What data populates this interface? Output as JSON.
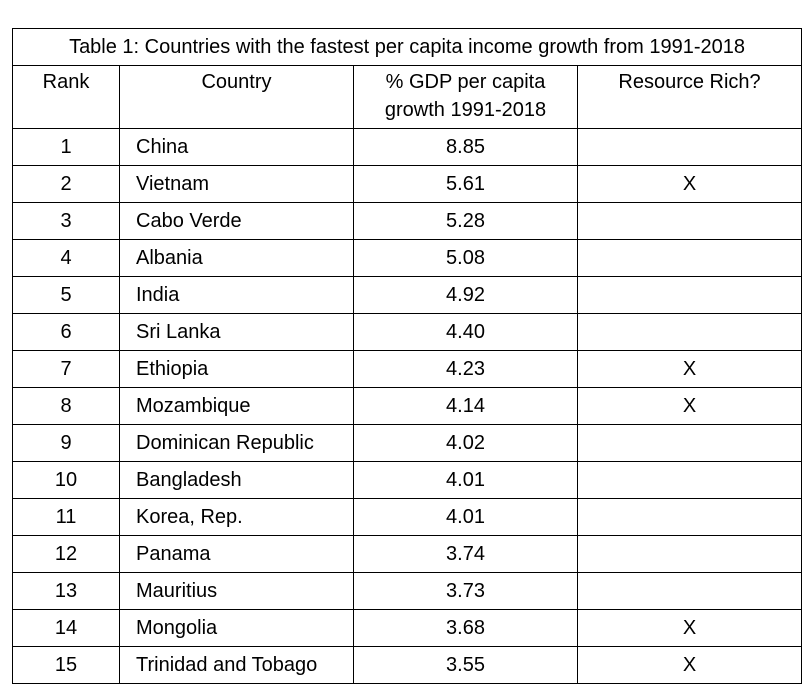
{
  "table": {
    "title": "Table 1: Countries with the fastest per capita income growth from 1991-2018",
    "headers": {
      "rank": "Rank",
      "country": "Country",
      "growth_line1": "% GDP per capita",
      "growth_line2": "growth 1991-2018",
      "resource_rich": "Resource Rich?"
    },
    "rows": [
      {
        "rank": "1",
        "country": "China",
        "growth": "8.85",
        "resource_rich": ""
      },
      {
        "rank": "2",
        "country": "Vietnam",
        "growth": "5.61",
        "resource_rich": "X"
      },
      {
        "rank": "3",
        "country": "Cabo Verde",
        "growth": "5.28",
        "resource_rich": ""
      },
      {
        "rank": "4",
        "country": "Albania",
        "growth": "5.08",
        "resource_rich": ""
      },
      {
        "rank": "5",
        "country": "India",
        "growth": "4.92",
        "resource_rich": ""
      },
      {
        "rank": "6",
        "country": "Sri Lanka",
        "growth": "4.40",
        "resource_rich": ""
      },
      {
        "rank": "7",
        "country": "Ethiopia",
        "growth": "4.23",
        "resource_rich": "X"
      },
      {
        "rank": "8",
        "country": "Mozambique",
        "growth": "4.14",
        "resource_rich": "X"
      },
      {
        "rank": "9",
        "country": "Dominican Republic",
        "growth": "4.02",
        "resource_rich": ""
      },
      {
        "rank": "10",
        "country": "Bangladesh",
        "growth": "4.01",
        "resource_rich": ""
      },
      {
        "rank": "11",
        "country": "Korea, Rep.",
        "growth": "4.01",
        "resource_rich": ""
      },
      {
        "rank": "12",
        "country": "Panama",
        "growth": "3.74",
        "resource_rich": ""
      },
      {
        "rank": "13",
        "country": "Mauritius",
        "growth": "3.73",
        "resource_rich": ""
      },
      {
        "rank": "14",
        "country": "Mongolia",
        "growth": "3.68",
        "resource_rich": "X"
      },
      {
        "rank": "15",
        "country": "Trinidad and Tobago",
        "growth": "3.55",
        "resource_rich": "X"
      }
    ]
  }
}
